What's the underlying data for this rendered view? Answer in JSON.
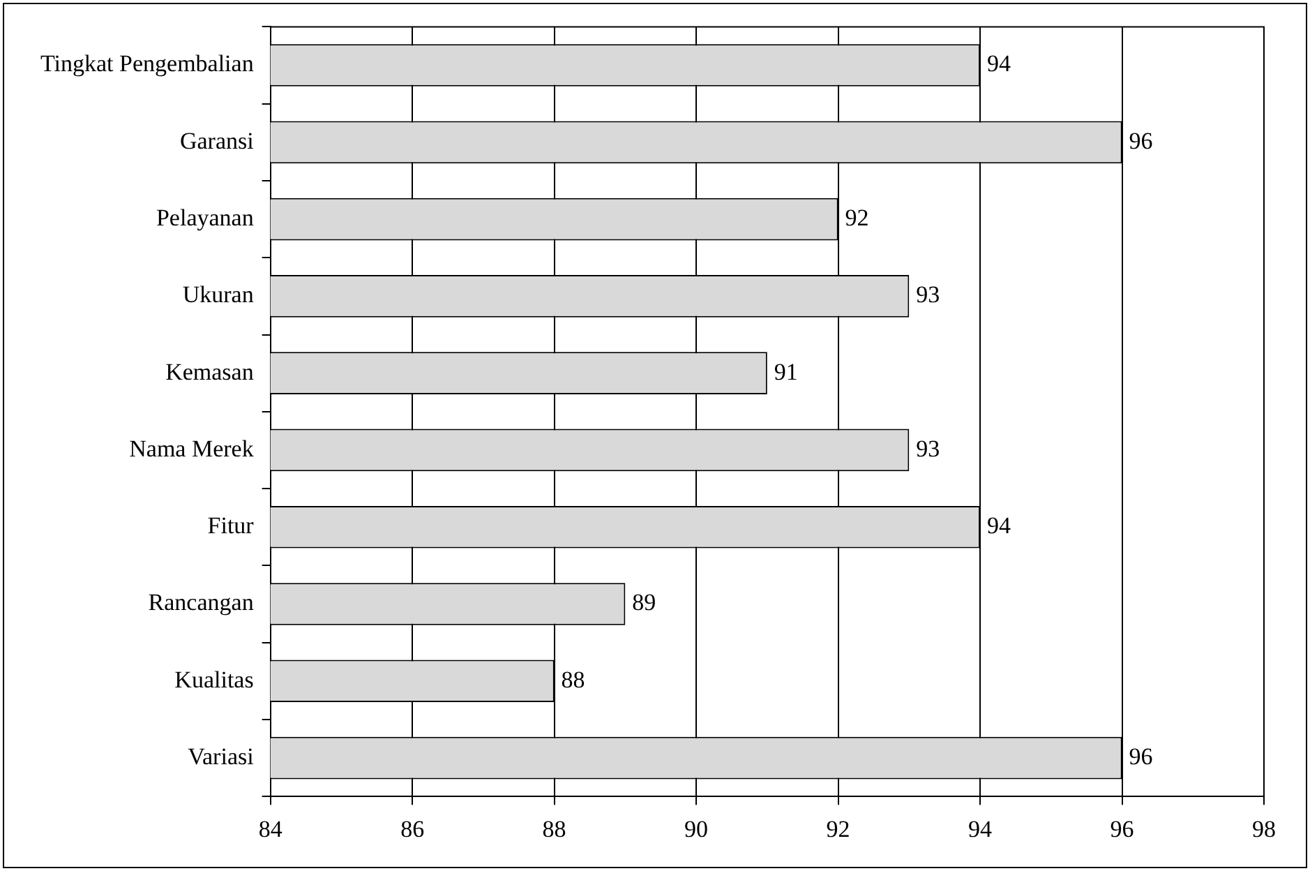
{
  "chart_data": {
    "type": "bar",
    "orientation": "horizontal",
    "categories": [
      "Tingkat Pengembalian",
      "Garansi",
      "Pelayanan",
      "Ukuran",
      "Kemasan",
      "Nama Merek",
      "Fitur",
      "Rancangan",
      "Kualitas",
      "Variasi"
    ],
    "values": [
      94,
      96,
      92,
      93,
      91,
      93,
      94,
      89,
      88,
      96
    ],
    "color": "#d9d9d9",
    "xlim": [
      84,
      98
    ],
    "xticks": [
      84,
      86,
      88,
      90,
      92,
      94,
      96,
      98
    ],
    "grid": "x",
    "data_labels": true,
    "legend": false
  }
}
